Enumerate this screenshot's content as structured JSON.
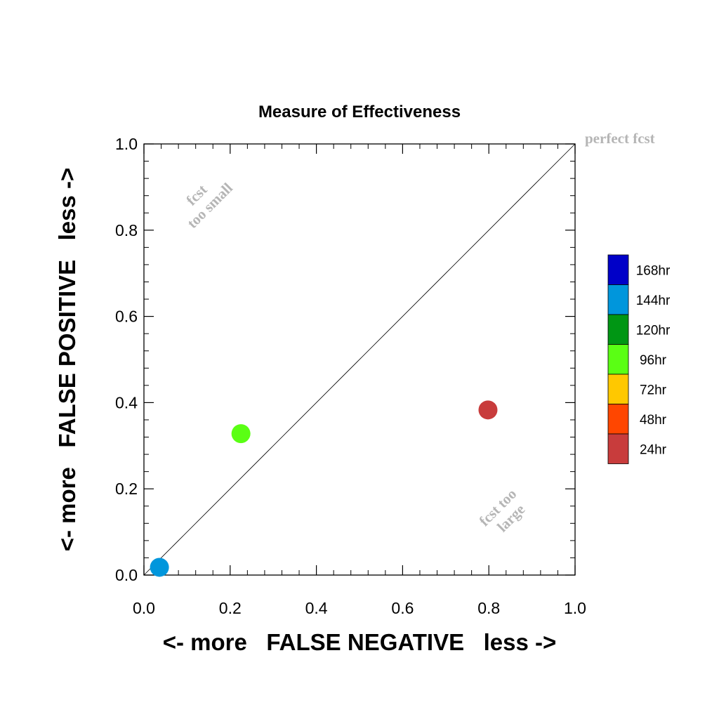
{
  "chart_data": {
    "type": "scatter",
    "title": "Measure of Effectiveness",
    "xlabel": "<- more   FALSE NEGATIVE   less ->",
    "ylabel": "<- more   FALSE POSITIVE   less ->",
    "xlim": [
      0.0,
      1.0
    ],
    "ylim": [
      0.0,
      1.0
    ],
    "x_ticks": [
      "0.0",
      "0.2",
      "0.4",
      "0.6",
      "0.8",
      "1.0"
    ],
    "y_ticks": [
      "0.0",
      "0.2",
      "0.4",
      "0.6",
      "0.8",
      "1.0"
    ],
    "grid": false,
    "reference_line": {
      "from": [
        0,
        0
      ],
      "to": [
        1,
        1
      ]
    },
    "annotations": {
      "perfect": "perfect fcst",
      "too_small": [
        "fcst",
        "too small"
      ],
      "too_large": [
        "fcst too",
        "large"
      ]
    },
    "legend": {
      "placement": "right",
      "entries": [
        {
          "label": "168hr",
          "color": "#0000c8"
        },
        {
          "label": "144hr",
          "color": "#0096dc"
        },
        {
          "label": "120hr",
          "color": "#009614"
        },
        {
          "label": "96hr",
          "color": "#5aff14"
        },
        {
          "label": "72hr",
          "color": "#ffc800"
        },
        {
          "label": "48hr",
          "color": "#ff4600"
        },
        {
          "label": "24hr",
          "color": "#c83c3c"
        }
      ]
    },
    "points": [
      {
        "series": "144hr",
        "x": 0.036,
        "y": 0.018,
        "color": "#0096dc"
      },
      {
        "series": "96hr",
        "x": 0.225,
        "y": 0.328,
        "color": "#5aff14"
      },
      {
        "series": "24hr",
        "x": 0.798,
        "y": 0.383,
        "color": "#c83c3c"
      }
    ]
  }
}
